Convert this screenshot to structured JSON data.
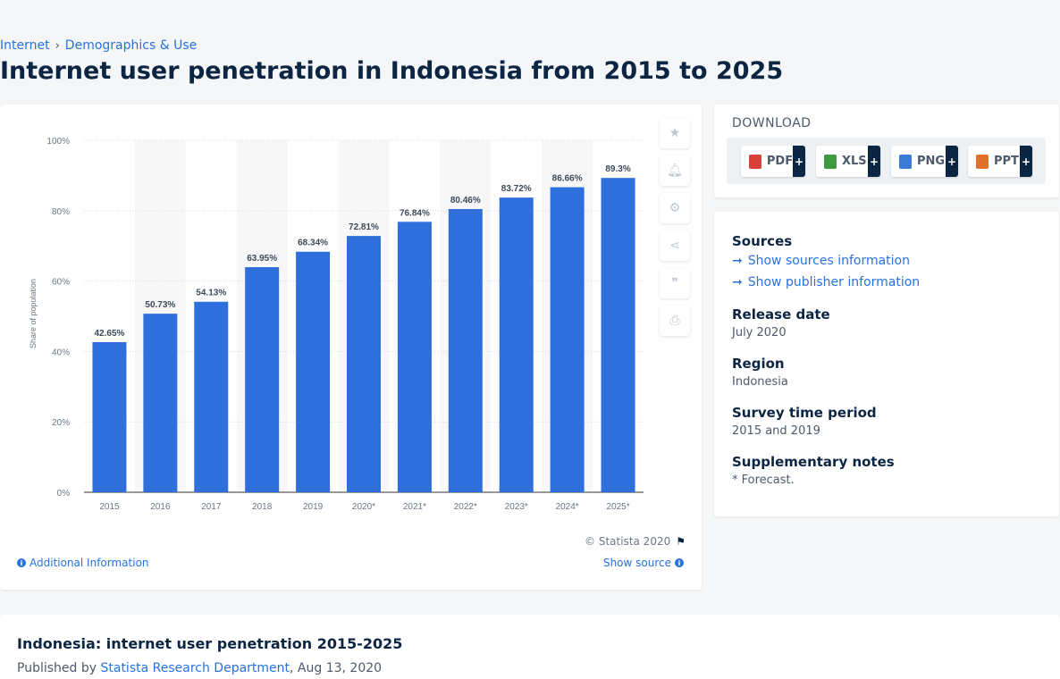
{
  "breadcrumb": {
    "item1": "Internet",
    "item2": "Demographics & Use",
    "sep": "›"
  },
  "page_title": "Internet user penetration in Indonesia from 2015 to 2025",
  "chart_data": {
    "type": "bar",
    "categories": [
      "2015",
      "2016",
      "2017",
      "2018",
      "2019",
      "2020*",
      "2021*",
      "2022*",
      "2023*",
      "2024*",
      "2025*"
    ],
    "values": [
      42.65,
      50.73,
      54.13,
      63.95,
      68.34,
      72.81,
      76.84,
      80.46,
      83.72,
      86.66,
      89.3
    ],
    "data_labels": [
      "42.65%",
      "50.73%",
      "54.13%",
      "63.95%",
      "68.34%",
      "72.81%",
      "76.84%",
      "80.46%",
      "83.72%",
      "86.66%",
      "89.3%"
    ],
    "ylabel": "Share of population",
    "ylim": [
      0,
      100
    ],
    "yticks": [
      "0%",
      "20%",
      "40%",
      "60%",
      "80%",
      "100%"
    ],
    "grid": true,
    "bar_color": "#2f6fdc"
  },
  "chart_footer": {
    "copyright": "© Statista 2020",
    "additional_info": "Additional Information",
    "show_source": "Show source"
  },
  "tools": [
    "star-icon",
    "bell-icon",
    "gear-icon",
    "share-icon",
    "quote-icon",
    "print-icon"
  ],
  "download": {
    "title": "DOWNLOAD",
    "buttons": [
      {
        "label": "PDF",
        "color": "#d9413a"
      },
      {
        "label": "XLS",
        "color": "#3e9a3e"
      },
      {
        "label": "PNG",
        "color": "#3a7bd5"
      },
      {
        "label": "PPT",
        "color": "#e0702b"
      }
    ],
    "plus": "+"
  },
  "meta": {
    "sources_heading": "Sources",
    "show_sources": "Show sources information",
    "show_publisher": "Show publisher information",
    "release_heading": "Release date",
    "release_value": "July 2020",
    "region_heading": "Region",
    "region_value": "Indonesia",
    "survey_heading": "Survey time period",
    "survey_value": "2015 and 2019",
    "notes_heading": "Supplementary notes",
    "notes_value": "* Forecast."
  },
  "bottom": {
    "title": "Indonesia: internet user penetration 2015-2025",
    "published_prefix": "Published by",
    "publisher": "Statista Research Department",
    "date": ", Aug 13, 2020"
  }
}
